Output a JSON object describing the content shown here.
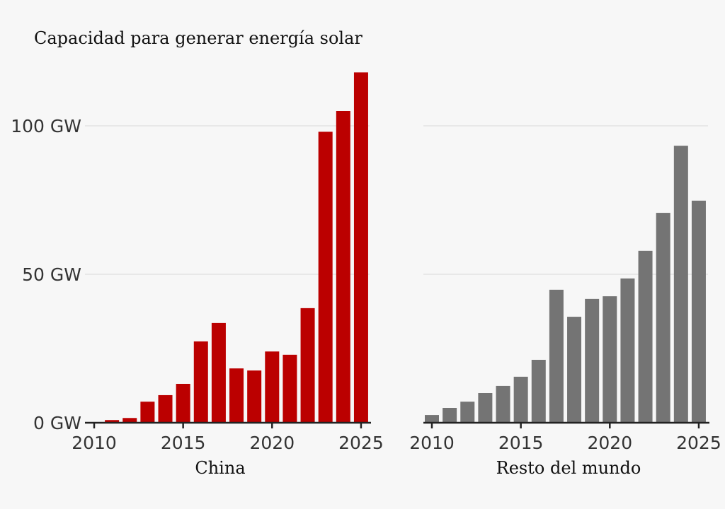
{
  "chart_data": {
    "type": "bar",
    "title": "Capacidad para generar energía solar",
    "ylim": [
      0,
      120
    ],
    "y_ticks": [
      {
        "value": 0,
        "label": "0 GW"
      },
      {
        "value": 50,
        "label": "50 GW"
      },
      {
        "value": 100,
        "label": "100 GW"
      }
    ],
    "x_ticks": [
      "2010",
      "2015",
      "2020",
      "2025"
    ],
    "grid": "horizontal",
    "categories": [
      2010,
      2011,
      2012,
      2013,
      2014,
      2015,
      2016,
      2017,
      2018,
      2019,
      2020,
      2021,
      2022,
      2023,
      2024,
      2025
    ],
    "panels": [
      {
        "name": "China",
        "color": "#bb0000",
        "values": [
          0.2,
          0.9,
          1.6,
          7.1,
          9.3,
          13.1,
          27.4,
          33.6,
          18.3,
          17.6,
          24.0,
          22.9,
          38.6,
          98.0,
          105.0,
          118.0
        ]
      },
      {
        "name": "Resto del mundo",
        "color": "#747474",
        "values": [
          2.6,
          5.0,
          7.1,
          10.0,
          12.4,
          15.5,
          21.2,
          44.8,
          35.7,
          41.7,
          42.6,
          48.6,
          57.9,
          70.7,
          93.3,
          74.8
        ]
      }
    ]
  }
}
